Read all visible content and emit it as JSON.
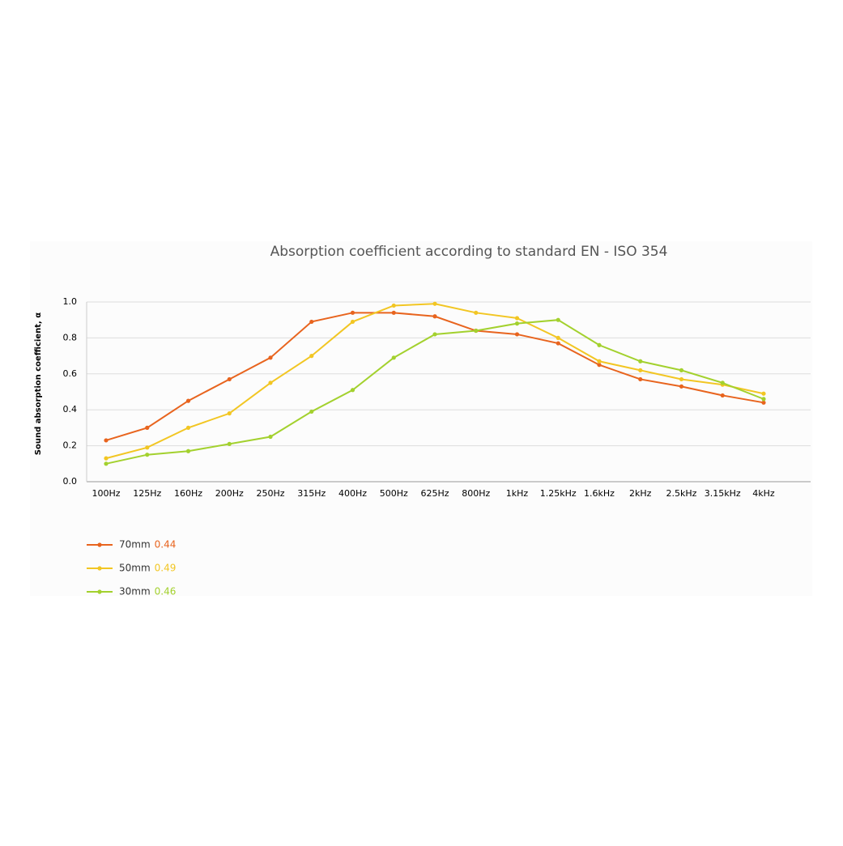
{
  "chart_data": {
    "type": "line",
    "title": "Absorption coefficient according to standard EN - ISO 354",
    "y_label": "Sound absorption coefficient, α",
    "categories": [
      "100Hz",
      "125Hz",
      "160Hz",
      "200Hz",
      "250Hz",
      "315Hz",
      "400Hz",
      "500Hz",
      "625Hz",
      "800Hz",
      "1kHz",
      "1.25kHz",
      "1.6kHz",
      "2kHz",
      "2.5kHz",
      "3.15kHz",
      "4kHz"
    ],
    "series": [
      {
        "name": "70mm",
        "color": "#e8641e",
        "legend_value": 0.44,
        "values": [
          0.23,
          0.3,
          0.45,
          0.57,
          0.69,
          0.89,
          0.94,
          0.94,
          0.92,
          0.84,
          0.82,
          0.77,
          0.65,
          0.57,
          0.53,
          0.48,
          0.44
        ]
      },
      {
        "name": "50mm",
        "color": "#f2c623",
        "legend_value": 0.49,
        "values": [
          0.13,
          0.19,
          0.3,
          0.38,
          0.55,
          0.7,
          0.89,
          0.98,
          0.99,
          0.94,
          0.91,
          0.8,
          0.67,
          0.62,
          0.57,
          0.54,
          0.49
        ]
      },
      {
        "name": "30mm",
        "color": "#a3d12e",
        "legend_value": 0.46,
        "values": [
          0.1,
          0.15,
          0.17,
          0.21,
          0.25,
          0.39,
          0.51,
          0.69,
          0.82,
          0.84,
          0.88,
          0.9,
          0.76,
          0.67,
          0.62,
          0.55,
          0.46
        ]
      }
    ],
    "ylim": [
      0,
      1
    ],
    "yticks": [
      {
        "value": 0,
        "label": "0.0"
      },
      0.2,
      0.4,
      0.6,
      0.8,
      {
        "value": 1,
        "label": "1.0"
      }
    ],
    "grid": true
  }
}
